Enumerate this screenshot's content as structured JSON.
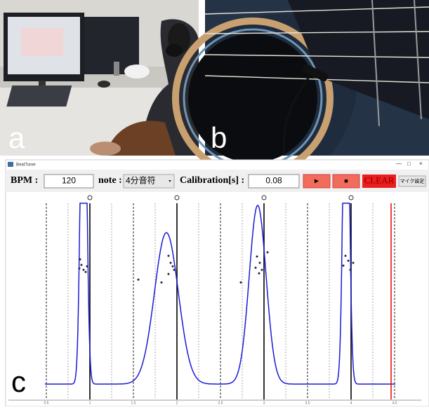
{
  "panels": {
    "a": "a",
    "b": "b",
    "c": "c"
  },
  "window": {
    "title": "BeatTuner",
    "controls": [
      "—",
      "□",
      "×"
    ]
  },
  "toolbar": {
    "bpm_label": "BPM :",
    "bpm_value": "120",
    "note_label": "note :",
    "note_value": "4分音符",
    "calibration_label": "Calibration[s] :",
    "calibration_value": "0.08",
    "play": "▶",
    "stop": "■",
    "clear": "CLEAR",
    "mic": "マイク設定"
  },
  "plot": {
    "x_labels": [
      "0.5",
      "1",
      "1.5",
      "2",
      "2.5",
      "3",
      "3.5",
      "4",
      "4.5"
    ]
  }
}
